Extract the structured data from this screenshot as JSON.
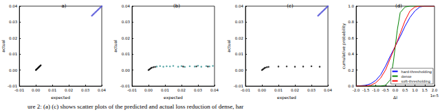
{
  "chart_data": [
    {
      "type": "scatter",
      "title": "a)",
      "xlabel": "expected",
      "ylabel": "actual",
      "xlim": [
        -0.01,
        0.04
      ],
      "ylim": [
        -0.01,
        0.04
      ],
      "xticks": [
        -0.01,
        {
          "value": 0,
          "label": "0.00"
        },
        0.01,
        0.02,
        0.03,
        0.04
      ],
      "yticks": [
        -0.01,
        {
          "value": 0,
          "label": "0.00"
        },
        0.01,
        0.02,
        0.03,
        0.04
      ],
      "series": [
        {
          "color": "#5050d8",
          "values": [
            [
              0.034,
              0.034
            ],
            [
              0.0345,
              0.0345
            ],
            [
              0.035,
              0.035
            ],
            [
              0.0355,
              0.0355
            ],
            [
              0.036,
              0.036
            ],
            [
              0.0365,
              0.0365
            ],
            [
              0.037,
              0.037
            ],
            [
              0.0375,
              0.0375
            ],
            [
              0.038,
              0.038
            ],
            [
              0.0385,
              0.0385
            ],
            [
              0.039,
              0.039
            ],
            [
              0.0395,
              0.0395
            ],
            [
              0.04,
              0.04
            ]
          ]
        },
        {
          "color": "#000000",
          "values": [
            [
              0,
              0
            ],
            [
              0.0003,
              0.0003
            ],
            [
              0.0006,
              0.0006
            ],
            [
              0.0009,
              0.0009
            ],
            [
              0.0012,
              0.0012
            ],
            [
              0.0015,
              0.0015
            ],
            [
              0.0018,
              0.0018
            ],
            [
              0.0021,
              0.0021
            ],
            [
              0.0024,
              0.0024
            ],
            [
              0.0027,
              0.0027
            ],
            [
              0.003,
              0.003
            ]
          ]
        }
      ]
    },
    {
      "type": "scatter",
      "title": "(b)",
      "xlabel": "expected",
      "ylabel": "actual",
      "xlim": [
        -0.01,
        0.04
      ],
      "ylim": [
        -0.01,
        0.04
      ],
      "xticks": [
        -0.01,
        {
          "value": 0,
          "label": "0.00"
        },
        0.01,
        0.02,
        0.03,
        0.04
      ],
      "yticks": [
        -0.01,
        {
          "value": 0,
          "label": "0.00"
        },
        0.01,
        0.02,
        0.03,
        0.04
      ],
      "series": [
        {
          "color": "#2a8f8f",
          "values": [
            [
              0.005,
              0.0022
            ],
            [
              0.007,
              0.0025
            ],
            [
              0.009,
              0.0021
            ],
            [
              0.011,
              0.0024
            ],
            [
              0.013,
              0.0023
            ],
            [
              0.015,
              0.0026
            ],
            [
              0.018,
              0.0021
            ],
            [
              0.02,
              0.0025
            ],
            [
              0.022,
              0.002
            ],
            [
              0.025,
              0.0024
            ],
            [
              0.028,
              0.0022
            ],
            [
              0.03,
              0.0027
            ],
            [
              0.032,
              0.0021
            ],
            [
              0.035,
              0.0025
            ],
            [
              0.037,
              0.0023
            ],
            [
              0.039,
              0.0026
            ]
          ]
        },
        {
          "color": "#000000",
          "values": [
            [
              0,
              0
            ],
            [
              0.0005,
              0.0004
            ],
            [
              0.001,
              0.0008
            ],
            [
              0.0015,
              0.0012
            ],
            [
              0.002,
              0.0015
            ],
            [
              0.003,
              0.0018
            ],
            [
              0.004,
              0.002
            ],
            [
              0.021,
              0.0022
            ],
            [
              0.029,
              0.0023
            ],
            [
              0.036,
              0.0022
            ]
          ]
        }
      ]
    },
    {
      "type": "scatter",
      "title": "(c)",
      "xlabel": "expected",
      "ylabel": "actual",
      "xlim": [
        -0.01,
        0.04
      ],
      "ylim": [
        -0.01,
        0.04
      ],
      "xticks": [
        -0.01,
        {
          "value": 0,
          "label": "0.00"
        },
        0.01,
        0.02,
        0.03,
        0.04
      ],
      "yticks": [
        -0.01,
        {
          "value": 0,
          "label": "0.00"
        },
        0.01,
        0.02,
        0.03,
        0.04
      ],
      "series": [
        {
          "color": "#5050d8",
          "values": [
            [
              0.034,
              0.034
            ],
            [
              0.0345,
              0.0345
            ],
            [
              0.035,
              0.035
            ],
            [
              0.0355,
              0.0355
            ],
            [
              0.036,
              0.036
            ],
            [
              0.0365,
              0.0365
            ],
            [
              0.037,
              0.037
            ],
            [
              0.0375,
              0.0375
            ],
            [
              0.038,
              0.038
            ],
            [
              0.0385,
              0.0385
            ],
            [
              0.039,
              0.039
            ],
            [
              0.0395,
              0.0395
            ],
            [
              0.04,
              0.04
            ]
          ]
        },
        {
          "color": "#000000",
          "values": [
            [
              0,
              0
            ],
            [
              0.0005,
              0.0004
            ],
            [
              0.001,
              0.0008
            ],
            [
              0.0015,
              0.0012
            ],
            [
              0.002,
              0.0015
            ],
            [
              0.003,
              0.0018
            ],
            [
              0.004,
              0.002
            ],
            [
              0.01,
              0.0022
            ],
            [
              0.015,
              0.0023
            ],
            [
              0.02,
              0.0021
            ],
            [
              0.025,
              0.0022
            ],
            [
              0.03,
              0.0024
            ],
            [
              0.035,
              0.0021
            ]
          ]
        }
      ]
    },
    {
      "type": "line",
      "title": "(d)",
      "xlabel": "ΔI",
      "ylabel": "cumulative probability",
      "annotations": [
        "1e-5"
      ],
      "legend": "lower right",
      "xlim": [
        -2,
        2
      ],
      "ylim": [
        0,
        1
      ],
      "xticks": [
        {
          "value": -2,
          "label": "-2.0"
        },
        -1.5,
        {
          "value": -1,
          "label": "-1.0"
        },
        -0.5,
        {
          "value": 0,
          "label": "0.0"
        },
        0.5,
        {
          "value": 1,
          "label": "1.0"
        },
        1.5,
        {
          "value": 2,
          "label": "2.0"
        }
      ],
      "yticks": [
        {
          "value": 0,
          "label": "0.0"
        },
        0.2,
        0.4,
        0.6,
        0.8,
        {
          "value": 1,
          "label": "1.0"
        }
      ],
      "x": [
        -2,
        -1.5,
        -1.25,
        -1,
        -0.75,
        -0.5,
        -0.25,
        -0.1,
        0,
        0.1,
        0.25,
        0.5,
        0.75,
        1,
        1.25,
        1.5,
        2
      ],
      "series": [
        {
          "name": "hard-thresholding",
          "color": "#0000ff",
          "values": [
            0,
            0.01,
            0.03,
            0.07,
            0.14,
            0.25,
            0.38,
            0.45,
            0.5,
            0.55,
            0.62,
            0.75,
            0.86,
            0.94,
            0.99,
            1,
            1
          ]
        },
        {
          "name": "dense",
          "color": "#008000",
          "values": [
            0,
            0,
            0,
            0,
            0,
            0.01,
            0.08,
            0.3,
            0.5,
            0.7,
            0.92,
            0.99,
            1,
            1,
            1,
            1,
            1
          ]
        },
        {
          "name": "soft-thresholding",
          "color": "#ff0000",
          "values": [
            0,
            0,
            0.01,
            0.04,
            0.1,
            0.2,
            0.35,
            0.44,
            0.5,
            0.56,
            0.66,
            0.82,
            0.94,
            0.99,
            1,
            1,
            1
          ]
        }
      ]
    }
  ],
  "caption": "ure 2: (a) (c) shows scatter plots of the predicted and actual loss reduction of dense, har"
}
